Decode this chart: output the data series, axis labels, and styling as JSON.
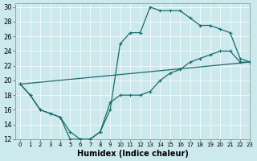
{
  "xlabel": "Humidex (Indice chaleur)",
  "xlim": [
    -0.5,
    23
  ],
  "ylim": [
    12,
    30.5
  ],
  "xticks": [
    0,
    1,
    2,
    3,
    4,
    5,
    6,
    7,
    8,
    9,
    10,
    11,
    12,
    13,
    14,
    15,
    16,
    17,
    18,
    19,
    20,
    21,
    22,
    23
  ],
  "yticks": [
    12,
    14,
    16,
    18,
    20,
    22,
    24,
    26,
    28,
    30
  ],
  "bg_color": "#cce9ee",
  "grid_color": "#b0d5dc",
  "line_color": "#1a6b6b",
  "line1_x": [
    0,
    1,
    2,
    3,
    4,
    5,
    6,
    7,
    8,
    9,
    10,
    11,
    12,
    13,
    14,
    15,
    16,
    17,
    18,
    19,
    20,
    21,
    22,
    23
  ],
  "line1_y": [
    19.5,
    18,
    16,
    15.5,
    15,
    13,
    12,
    12,
    13,
    16,
    25,
    26.5,
    26.5,
    30,
    29.5,
    29.5,
    29.5,
    28.5,
    27.5,
    27.5,
    27,
    26.5,
    23,
    22.5
  ],
  "line2_x": [
    0,
    1,
    2,
    3,
    4,
    5,
    6,
    7,
    8,
    9,
    10,
    11,
    12,
    13,
    14,
    15,
    16,
    17,
    18,
    19,
    20,
    21,
    22,
    23
  ],
  "line2_y": [
    19.5,
    18,
    16,
    15.5,
    15,
    12,
    12,
    12,
    13,
    17,
    18,
    18,
    18,
    18.5,
    20,
    21,
    21.5,
    22.5,
    23,
    23.5,
    24,
    24,
    22.5,
    22.5
  ],
  "line3_x": [
    0,
    23
  ],
  "line3_y": [
    19.5,
    22.5
  ]
}
